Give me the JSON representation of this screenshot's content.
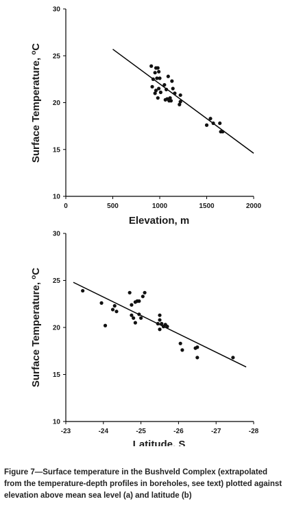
{
  "chart_data": [
    {
      "type": "scatter",
      "panel": "a",
      "xlabel": "Elevation, m",
      "ylabel_main": "Surface Temperature, ",
      "ylabel_unit_sup": "o",
      "ylabel_unit": "C",
      "xlim": [
        0,
        2000
      ],
      "ylim": [
        10,
        30
      ],
      "x_ticks": [
        0,
        500,
        1000,
        1500,
        2000
      ],
      "x_tick_labels": [
        "0",
        "500",
        "1000",
        "1500",
        "2000"
      ],
      "y_ticks": [
        10,
        15,
        20,
        25,
        30
      ],
      "y_tick_labels": [
        "10",
        "15",
        "20",
        "25",
        "30"
      ],
      "grid": false,
      "fit_line": {
        "x": [
          500,
          2000
        ],
        "y": [
          25.7,
          14.6
        ]
      },
      "points": [
        {
          "x": 910,
          "y": 23.9
        },
        {
          "x": 960,
          "y": 23.7
        },
        {
          "x": 980,
          "y": 23.7
        },
        {
          "x": 950,
          "y": 23.2
        },
        {
          "x": 990,
          "y": 23.3
        },
        {
          "x": 930,
          "y": 22.5
        },
        {
          "x": 970,
          "y": 22.6
        },
        {
          "x": 1000,
          "y": 22.6
        },
        {
          "x": 920,
          "y": 21.7
        },
        {
          "x": 960,
          "y": 21.3
        },
        {
          "x": 990,
          "y": 21.5
        },
        {
          "x": 1010,
          "y": 21.1
        },
        {
          "x": 950,
          "y": 21.0
        },
        {
          "x": 980,
          "y": 20.5
        },
        {
          "x": 1050,
          "y": 21.9
        },
        {
          "x": 1070,
          "y": 21.4
        },
        {
          "x": 1060,
          "y": 20.3
        },
        {
          "x": 1080,
          "y": 20.4
        },
        {
          "x": 1100,
          "y": 20.2
        },
        {
          "x": 1110,
          "y": 20.5
        },
        {
          "x": 1120,
          "y": 20.2
        },
        {
          "x": 1090,
          "y": 22.8
        },
        {
          "x": 1130,
          "y": 22.3
        },
        {
          "x": 1140,
          "y": 21.5
        },
        {
          "x": 1160,
          "y": 21.0
        },
        {
          "x": 1220,
          "y": 20.8
        },
        {
          "x": 1210,
          "y": 19.8
        },
        {
          "x": 1220,
          "y": 20.1
        },
        {
          "x": 1500,
          "y": 17.6
        },
        {
          "x": 1540,
          "y": 18.3
        },
        {
          "x": 1570,
          "y": 17.8
        },
        {
          "x": 1640,
          "y": 17.8
        },
        {
          "x": 1650,
          "y": 16.9
        },
        {
          "x": 1670,
          "y": 16.9
        }
      ]
    },
    {
      "type": "scatter",
      "panel": "b",
      "xlabel": "Latitude, S",
      "ylabel_main": "Surface Temperature, ",
      "ylabel_unit_sup": "o",
      "ylabel_unit": "C",
      "xlim": [
        -23,
        -28
      ],
      "ylim": [
        10,
        30
      ],
      "x_ticks": [
        -23,
        -24,
        -25,
        -26,
        -27,
        -28
      ],
      "x_tick_labels": [
        "-23",
        "-24",
        "-25",
        "-26",
        "-27",
        "-28"
      ],
      "y_ticks": [
        10,
        15,
        20,
        25,
        30
      ],
      "y_tick_labels": [
        "10",
        "15",
        "20",
        "25",
        "30"
      ],
      "grid": false,
      "fit_line": {
        "x": [
          -23.2,
          -27.8
        ],
        "y": [
          24.8,
          15.8
        ]
      },
      "points": [
        {
          "x": -23.45,
          "y": 23.9
        },
        {
          "x": -23.95,
          "y": 22.6
        },
        {
          "x": -24.05,
          "y": 20.2
        },
        {
          "x": -24.25,
          "y": 21.9
        },
        {
          "x": -24.35,
          "y": 21.7
        },
        {
          "x": -24.3,
          "y": 22.3
        },
        {
          "x": -24.7,
          "y": 23.7
        },
        {
          "x": -24.75,
          "y": 22.4
        },
        {
          "x": -24.85,
          "y": 22.7
        },
        {
          "x": -24.9,
          "y": 22.8
        },
        {
          "x": -24.95,
          "y": 22.8
        },
        {
          "x": -25.05,
          "y": 23.3
        },
        {
          "x": -25.1,
          "y": 23.7
        },
        {
          "x": -24.75,
          "y": 21.3
        },
        {
          "x": -24.8,
          "y": 21.0
        },
        {
          "x": -24.85,
          "y": 20.5
        },
        {
          "x": -24.95,
          "y": 21.4
        },
        {
          "x": -25.0,
          "y": 21.0
        },
        {
          "x": -25.45,
          "y": 20.4
        },
        {
          "x": -25.5,
          "y": 21.3
        },
        {
          "x": -25.5,
          "y": 20.8
        },
        {
          "x": -25.55,
          "y": 20.4
        },
        {
          "x": -25.5,
          "y": 19.8
        },
        {
          "x": -25.6,
          "y": 20.1
        },
        {
          "x": -25.65,
          "y": 20.3
        },
        {
          "x": -25.7,
          "y": 20.1
        },
        {
          "x": -26.05,
          "y": 18.3
        },
        {
          "x": -26.1,
          "y": 17.6
        },
        {
          "x": -26.45,
          "y": 17.8
        },
        {
          "x": -26.5,
          "y": 17.9
        },
        {
          "x": -26.5,
          "y": 16.8
        },
        {
          "x": -27.45,
          "y": 16.8
        }
      ]
    }
  ],
  "caption": "Figure 7—Surface temperature in the Bushveld Complex (extrapolated from the temperature-depth profiles in boreholes, see text) plotted against elevation above mean sea level (a) and latitude (b)"
}
